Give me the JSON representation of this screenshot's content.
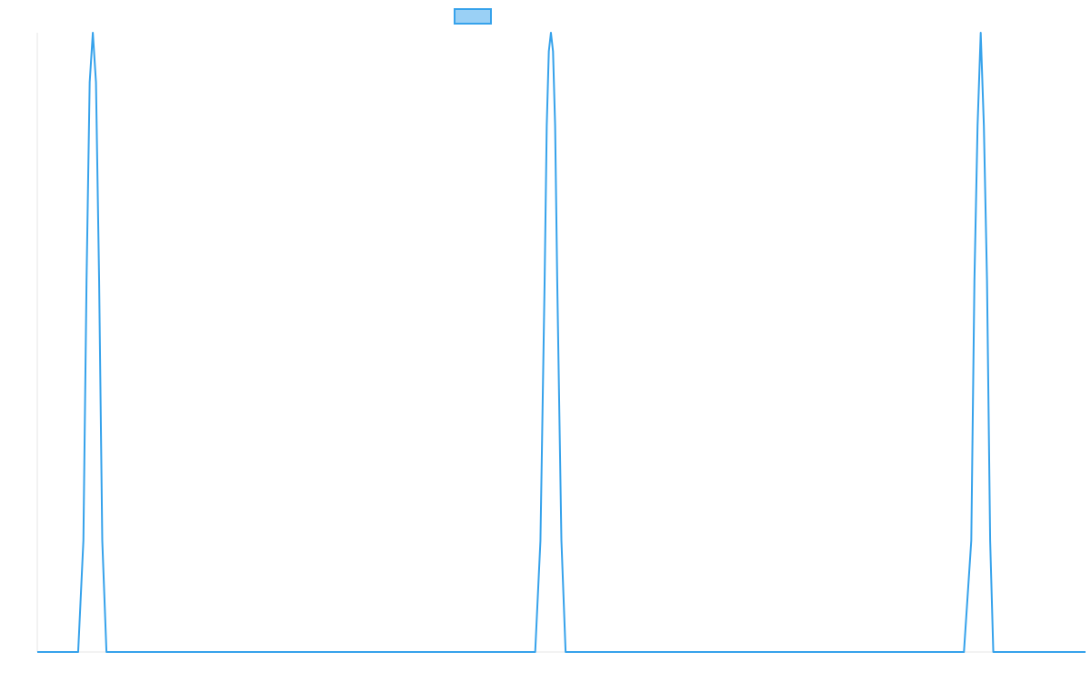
{
  "chart_data": {
    "type": "line",
    "title": "",
    "xlabel": "",
    "ylabel": "",
    "xlim": [
      0,
      1000
    ],
    "ylim": [
      0,
      1
    ],
    "grid": false,
    "legend": {
      "position": "top-center",
      "entries": [
        ""
      ]
    },
    "series": [
      {
        "color": "#36a2eb",
        "fill": "#9ad0f5",
        "x": [
          0,
          39,
          44,
          47,
          50,
          53,
          56,
          59,
          62,
          66,
          79,
          475,
          480,
          484,
          486,
          488,
          490,
          492,
          494,
          496,
          500,
          504,
          884,
          891,
          894,
          897,
          900,
          903,
          906,
          909,
          912,
          916,
          1000
        ],
        "y": [
          0,
          0,
          0.18,
          0.6,
          0.92,
          1.0,
          0.92,
          0.6,
          0.18,
          0,
          0,
          0,
          0.18,
          0.6,
          0.85,
          0.97,
          1.0,
          0.97,
          0.85,
          0.6,
          0.18,
          0,
          0,
          0.18,
          0.6,
          0.85,
          1.0,
          0.85,
          0.6,
          0.18,
          0,
          0,
          0
        ]
      }
    ]
  }
}
